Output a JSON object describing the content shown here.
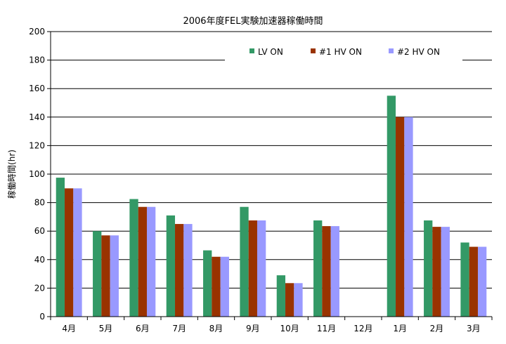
{
  "chart_data": {
    "type": "bar",
    "title": "2006年度FEL実験加速器稼働時間",
    "xlabel": "",
    "ylabel": "稼働時間(hr)",
    "ylim": [
      0,
      200
    ],
    "yticks": [
      0,
      20,
      40,
      60,
      80,
      100,
      120,
      140,
      160,
      180,
      200
    ],
    "grid": true,
    "legend_position": "top-right",
    "categories": [
      "4月",
      "5月",
      "6月",
      "7月",
      "8月",
      "9月",
      "10月",
      "11月",
      "12月",
      "1月",
      "2月",
      "3月"
    ],
    "series": [
      {
        "name": "LV ON",
        "color": "#339966",
        "values": [
          97.5,
          60,
          82.5,
          71,
          46.5,
          77,
          29,
          67.5,
          0,
          155,
          67.5,
          52
        ]
      },
      {
        "name": "#1  HV ON",
        "color": "#993300",
        "values": [
          90,
          57,
          77,
          65,
          42,
          67.5,
          23.5,
          63.5,
          0,
          140,
          63,
          49
        ]
      },
      {
        "name": "#2  HV ON",
        "color": "#9999ff",
        "values": [
          90,
          57,
          77,
          65,
          42,
          67.5,
          23.5,
          63.5,
          0,
          140,
          63,
          49
        ]
      }
    ]
  }
}
